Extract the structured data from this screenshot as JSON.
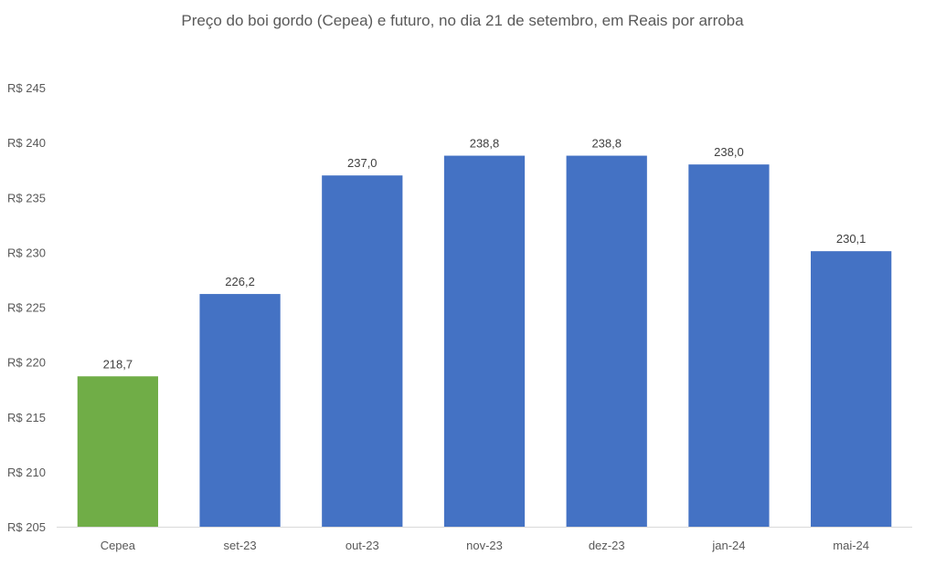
{
  "chart_data": {
    "type": "bar",
    "title": "Preço do boi gordo (Cepea) e futuro, no dia 21 de setembro, em Reais por arroba",
    "xlabel": "",
    "ylabel": "",
    "categories": [
      "Cepea",
      "set-23",
      "out-23",
      "nov-23",
      "dez-23",
      "jan-24",
      "mai-24"
    ],
    "values": [
      218.7,
      226.2,
      237.0,
      238.8,
      238.8,
      238.0,
      230.1
    ],
    "data_labels": [
      "218,7",
      "226,2",
      "237,0",
      "238,8",
      "238,8",
      "238,0",
      "230,1"
    ],
    "bar_colors": [
      "#70ad47",
      "#4472c4",
      "#4472c4",
      "#4472c4",
      "#4472c4",
      "#4472c4",
      "#4472c4"
    ],
    "ylim": [
      205,
      245
    ],
    "yticks": [
      205,
      210,
      215,
      220,
      225,
      230,
      235,
      240,
      245
    ],
    "ytick_labels": [
      "R$ 205",
      "R$ 210",
      "R$ 215",
      "R$ 220",
      "R$ 225",
      "R$ 230",
      "R$ 235",
      "R$ 240",
      "R$ 245"
    ],
    "grid": false,
    "legend": "none"
  }
}
